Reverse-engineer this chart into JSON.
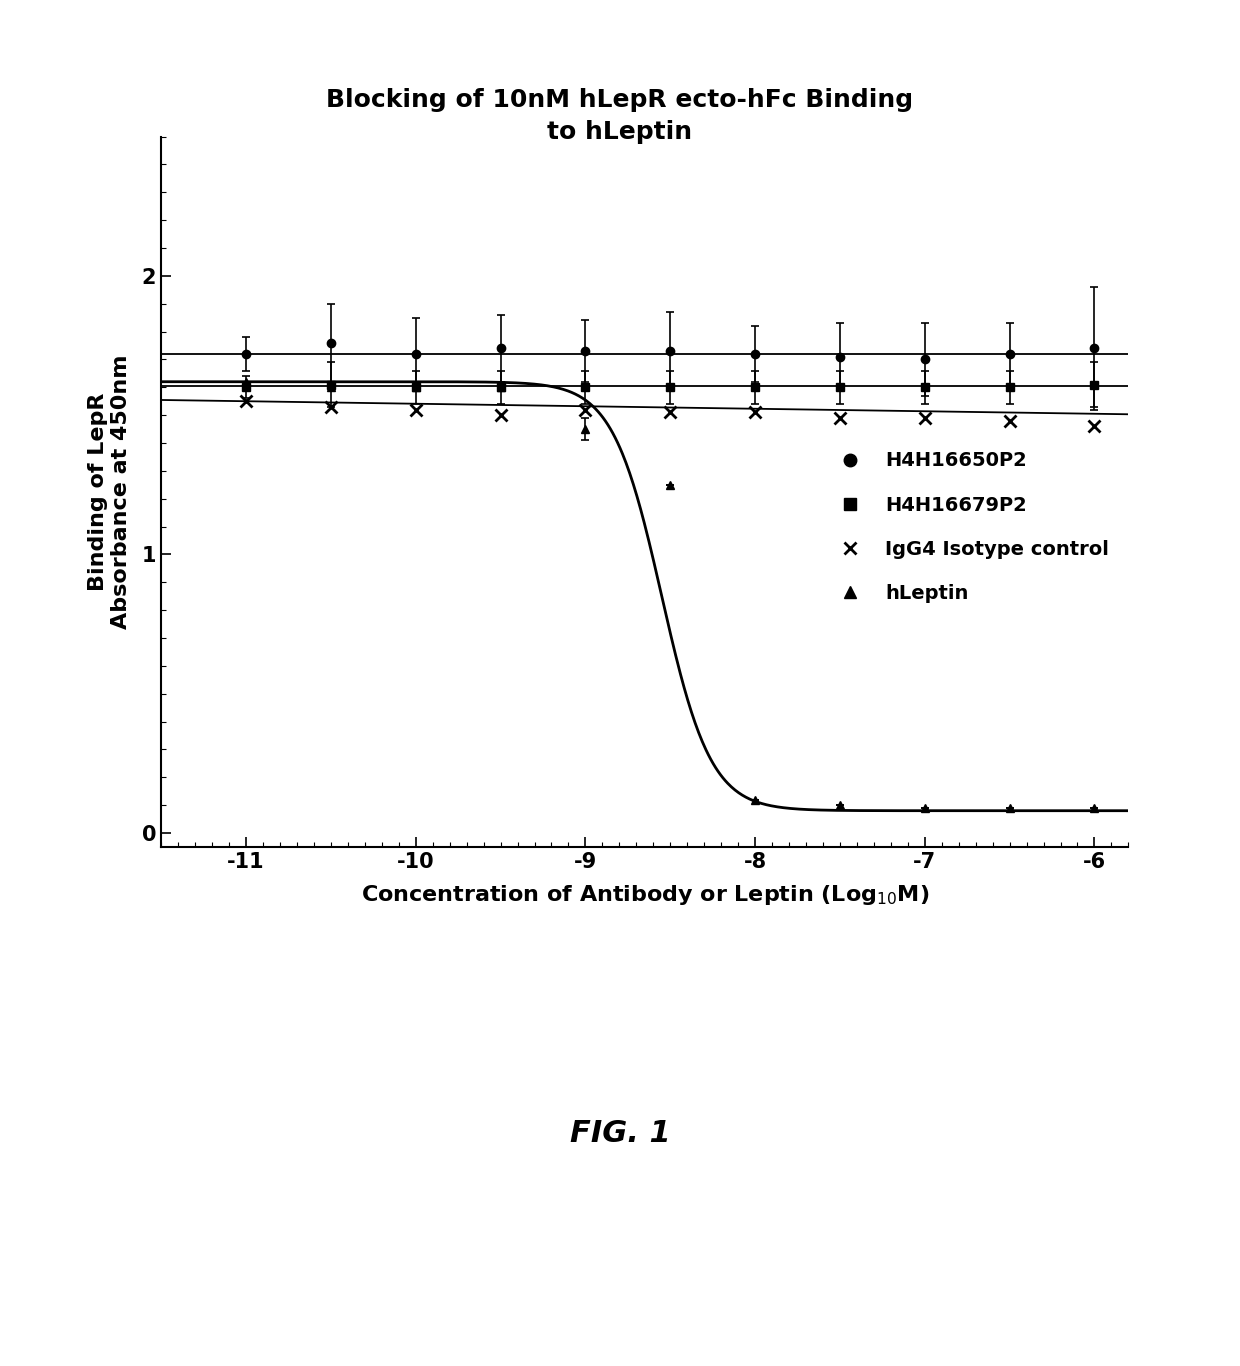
{
  "title": "Blocking of 10nM hLepR ecto-hFc Binding\nto hLeptin",
  "xlabel": "Concentration of Antibody or Leptin (Log$_{10}$M)",
  "ylabel": "Binding of LepR\nAbsorbance at 450nm",
  "xlim": [
    -11.5,
    -5.8
  ],
  "ylim": [
    -0.05,
    2.5
  ],
  "xticks": [
    -11,
    -10,
    -9,
    -8,
    -7,
    -6
  ],
  "yticks": [
    0,
    1,
    2
  ],
  "fig_caption": "FIG. 1",
  "series": {
    "H4H16650P2": {
      "label": "H4H16650P2",
      "marker": "o",
      "x": [
        -11,
        -10.5,
        -10,
        -9.5,
        -9,
        -8.5,
        -8,
        -7.5,
        -7,
        -6.5,
        -6
      ],
      "y": [
        1.72,
        1.76,
        1.72,
        1.74,
        1.73,
        1.73,
        1.72,
        1.71,
        1.7,
        1.72,
        1.74
      ],
      "yerr": [
        0.06,
        0.14,
        0.13,
        0.12,
        0.11,
        0.14,
        0.1,
        0.12,
        0.13,
        0.11,
        0.22
      ],
      "fit_y": 1.72
    },
    "H4H16679P2": {
      "label": "H4H16679P2",
      "marker": "s",
      "x": [
        -11,
        -10.5,
        -10,
        -9.5,
        -9,
        -8.5,
        -8,
        -7.5,
        -7,
        -6.5,
        -6
      ],
      "y": [
        1.6,
        1.61,
        1.6,
        1.6,
        1.6,
        1.6,
        1.6,
        1.6,
        1.6,
        1.6,
        1.61
      ],
      "yerr": [
        0.04,
        0.08,
        0.06,
        0.06,
        0.06,
        0.06,
        0.06,
        0.06,
        0.06,
        0.06,
        0.08
      ],
      "fit_y": 1.605
    },
    "IgG4": {
      "label": "IgG4 Isotype control",
      "marker": "x",
      "x": [
        -11,
        -10.5,
        -10,
        -9.5,
        -9,
        -8.5,
        -8,
        -7.5,
        -7,
        -6.5,
        -6
      ],
      "y": [
        1.55,
        1.53,
        1.52,
        1.5,
        1.52,
        1.51,
        1.51,
        1.49,
        1.49,
        1.48,
        1.46
      ],
      "fit_slope": -0.009,
      "fit_intercept": 1.55
    },
    "hLeptin": {
      "label": "hLeptin",
      "marker": "^",
      "x": [
        -11,
        -10.5,
        -10,
        -9.5,
        -9,
        -8.5,
        -8,
        -7.5,
        -7,
        -6.5,
        -6
      ],
      "y": [
        1.62,
        1.6,
        1.6,
        1.6,
        1.45,
        1.25,
        0.12,
        0.1,
        0.09,
        0.09,
        0.09
      ],
      "yerr": [
        0,
        0,
        0,
        0,
        0.04,
        0,
        0,
        0,
        0,
        0,
        0
      ],
      "ic50": -8.55,
      "top": 1.62,
      "bottom": 0.08,
      "hill": 3.0
    }
  }
}
